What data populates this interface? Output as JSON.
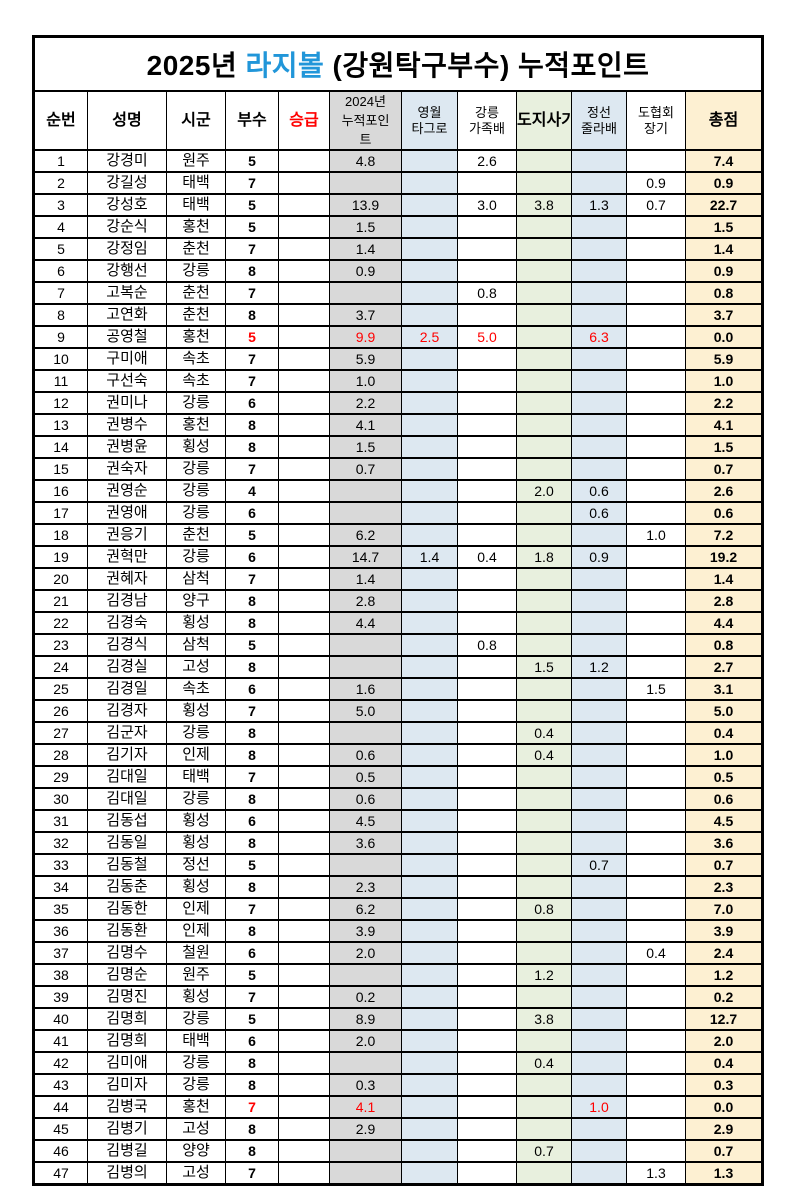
{
  "title": {
    "prefix": "2025년 ",
    "highlight": "라지볼",
    "suffix": " (강원탁구부수) 누적포인트"
  },
  "colors": {
    "title_highlight_blue": "#2196d9",
    "alert_red": "#ff0000",
    "col_2024_gray": "#d9d9d9",
    "col_event_blue": "#dde8f1",
    "col_event_green": "#e8f0de",
    "col_total_cream": "#fdf0d2"
  },
  "columns": [
    {
      "key": "no",
      "lines": [
        "순번"
      ],
      "bg": "",
      "red_label": false
    },
    {
      "key": "name",
      "lines": [
        "성명"
      ],
      "bg": "",
      "red_label": false
    },
    {
      "key": "city",
      "lines": [
        "시군"
      ],
      "bg": "",
      "red_label": false
    },
    {
      "key": "busu",
      "lines": [
        "부수"
      ],
      "bg": "",
      "red_label": false
    },
    {
      "key": "promo",
      "lines": [
        "승급"
      ],
      "bg": "",
      "red_label": true
    },
    {
      "key": "p2024",
      "lines": [
        "2024년",
        "누적포인",
        "트"
      ],
      "bg": "gray",
      "red_label": false
    },
    {
      "key": "yw",
      "lines": [
        "영월",
        "타그로"
      ],
      "bg": "blue",
      "red_label": false
    },
    {
      "key": "gn",
      "lines": [
        "강릉",
        "가족배"
      ],
      "bg": "",
      "red_label": false
    },
    {
      "key": "dj",
      "lines": [
        "도지사기"
      ],
      "bg": "green",
      "red_label": false
    },
    {
      "key": "js",
      "lines": [
        "정선",
        "줄라배"
      ],
      "bg": "blue",
      "red_label": false
    },
    {
      "key": "dh",
      "lines": [
        "도협회",
        "장기"
      ],
      "bg": "",
      "red_label": false
    },
    {
      "key": "total",
      "lines": [
        "총점"
      ],
      "bg": "cream",
      "red_label": false
    }
  ],
  "rows": [
    {
      "no": "1",
      "name": "강경미",
      "city": "원주",
      "busu": "5",
      "p2024": "4.8",
      "gn": "2.6",
      "total": "7.4"
    },
    {
      "no": "2",
      "name": "강길성",
      "city": "태백",
      "busu": "7",
      "dh": "0.9",
      "total": "0.9"
    },
    {
      "no": "3",
      "name": "강성호",
      "city": "태백",
      "busu": "5",
      "p2024": "13.9",
      "gn": "3.0",
      "dj": "3.8",
      "js": "1.3",
      "dh": "0.7",
      "total": "22.7"
    },
    {
      "no": "4",
      "name": "강순식",
      "city": "홍천",
      "busu": "5",
      "p2024": "1.5",
      "total": "1.5"
    },
    {
      "no": "5",
      "name": "강정임",
      "city": "춘천",
      "busu": "7",
      "p2024": "1.4",
      "total": "1.4"
    },
    {
      "no": "6",
      "name": "강행선",
      "city": "강릉",
      "busu": "8",
      "p2024": "0.9",
      "total": "0.9"
    },
    {
      "no": "7",
      "name": "고복순",
      "city": "춘천",
      "busu": "7",
      "gn": "0.8",
      "total": "0.8"
    },
    {
      "no": "8",
      "name": "고연화",
      "city": "춘천",
      "busu": "8",
      "p2024": "3.7",
      "total": "3.7"
    },
    {
      "no": "9",
      "name": "공영철",
      "city": "홍천",
      "busu": "5",
      "p2024": "9.9",
      "yw": "2.5",
      "gn": "5.0",
      "js": "6.3",
      "total": "0.0",
      "red": [
        "busu",
        "p2024",
        "yw",
        "gn",
        "js"
      ]
    },
    {
      "no": "10",
      "name": "구미애",
      "city": "속초",
      "busu": "7",
      "p2024": "5.9",
      "total": "5.9"
    },
    {
      "no": "11",
      "name": "구선숙",
      "city": "속초",
      "busu": "7",
      "p2024": "1.0",
      "total": "1.0"
    },
    {
      "no": "12",
      "name": "권미나",
      "city": "강릉",
      "busu": "6",
      "p2024": "2.2",
      "total": "2.2"
    },
    {
      "no": "13",
      "name": "권병수",
      "city": "홍천",
      "busu": "8",
      "p2024": "4.1",
      "total": "4.1"
    },
    {
      "no": "14",
      "name": "권병윤",
      "city": "횡성",
      "busu": "8",
      "p2024": "1.5",
      "total": "1.5"
    },
    {
      "no": "15",
      "name": "권숙자",
      "city": "강릉",
      "busu": "7",
      "p2024": "0.7",
      "total": "0.7"
    },
    {
      "no": "16",
      "name": "권영순",
      "city": "강릉",
      "busu": "4",
      "dj": "2.0",
      "js": "0.6",
      "total": "2.6"
    },
    {
      "no": "17",
      "name": "권영애",
      "city": "강릉",
      "busu": "6",
      "js": "0.6",
      "total": "0.6"
    },
    {
      "no": "18",
      "name": "권응기",
      "city": "춘천",
      "busu": "5",
      "p2024": "6.2",
      "dh": "1.0",
      "total": "7.2"
    },
    {
      "no": "19",
      "name": "권혁만",
      "city": "강릉",
      "busu": "6",
      "p2024": "14.7",
      "yw": "1.4",
      "gn": "0.4",
      "dj": "1.8",
      "js": "0.9",
      "total": "19.2"
    },
    {
      "no": "20",
      "name": "권혜자",
      "city": "삼척",
      "busu": "7",
      "p2024": "1.4",
      "total": "1.4"
    },
    {
      "no": "21",
      "name": "김경남",
      "city": "양구",
      "busu": "8",
      "p2024": "2.8",
      "total": "2.8"
    },
    {
      "no": "22",
      "name": "김경숙",
      "city": "횡성",
      "busu": "8",
      "p2024": "4.4",
      "total": "4.4"
    },
    {
      "no": "23",
      "name": "김경식",
      "city": "삼척",
      "busu": "5",
      "gn": "0.8",
      "total": "0.8"
    },
    {
      "no": "24",
      "name": "김경실",
      "city": "고성",
      "busu": "8",
      "dj": "1.5",
      "js": "1.2",
      "total": "2.7"
    },
    {
      "no": "25",
      "name": "김경일",
      "city": "속초",
      "busu": "6",
      "p2024": "1.6",
      "dh": "1.5",
      "total": "3.1"
    },
    {
      "no": "26",
      "name": "김경자",
      "city": "횡성",
      "busu": "7",
      "p2024": "5.0",
      "total": "5.0"
    },
    {
      "no": "27",
      "name": "김군자",
      "city": "강릉",
      "busu": "8",
      "dj": "0.4",
      "total": "0.4"
    },
    {
      "no": "28",
      "name": "김기자",
      "city": "인제",
      "busu": "8",
      "p2024": "0.6",
      "dj": "0.4",
      "total": "1.0"
    },
    {
      "no": "29",
      "name": "김대일",
      "city": "태백",
      "busu": "7",
      "p2024": "0.5",
      "total": "0.5"
    },
    {
      "no": "30",
      "name": "김대일",
      "city": "강릉",
      "busu": "8",
      "p2024": "0.6",
      "total": "0.6"
    },
    {
      "no": "31",
      "name": "김동섭",
      "city": "횡성",
      "busu": "6",
      "p2024": "4.5",
      "total": "4.5"
    },
    {
      "no": "32",
      "name": "김동일",
      "city": "횡성",
      "busu": "8",
      "p2024": "3.6",
      "total": "3.6"
    },
    {
      "no": "33",
      "name": "김동철",
      "city": "정선",
      "busu": "5",
      "js": "0.7",
      "total": "0.7"
    },
    {
      "no": "34",
      "name": "김동춘",
      "city": "횡성",
      "busu": "8",
      "p2024": "2.3",
      "total": "2.3"
    },
    {
      "no": "35",
      "name": "김동한",
      "city": "인제",
      "busu": "7",
      "p2024": "6.2",
      "dj": "0.8",
      "total": "7.0"
    },
    {
      "no": "36",
      "name": "김동환",
      "city": "인제",
      "busu": "8",
      "p2024": "3.9",
      "total": "3.9"
    },
    {
      "no": "37",
      "name": "김명수",
      "city": "철원",
      "busu": "6",
      "p2024": "2.0",
      "dh": "0.4",
      "total": "2.4"
    },
    {
      "no": "38",
      "name": "김명순",
      "city": "원주",
      "busu": "5",
      "dj": "1.2",
      "total": "1.2"
    },
    {
      "no": "39",
      "name": "김명진",
      "city": "횡성",
      "busu": "7",
      "p2024": "0.2",
      "total": "0.2"
    },
    {
      "no": "40",
      "name": "김명희",
      "city": "강릉",
      "busu": "5",
      "p2024": "8.9",
      "dj": "3.8",
      "total": "12.7"
    },
    {
      "no": "41",
      "name": "김명희",
      "city": "태백",
      "busu": "6",
      "p2024": "2.0",
      "total": "2.0"
    },
    {
      "no": "42",
      "name": "김미애",
      "city": "강릉",
      "busu": "8",
      "dj": "0.4",
      "total": "0.4"
    },
    {
      "no": "43",
      "name": "김미자",
      "city": "강릉",
      "busu": "8",
      "p2024": "0.3",
      "total": "0.3"
    },
    {
      "no": "44",
      "name": "김병국",
      "city": "홍천",
      "busu": "7",
      "p2024": "4.1",
      "js": "1.0",
      "total": "0.0",
      "red": [
        "busu",
        "p2024",
        "js"
      ]
    },
    {
      "no": "45",
      "name": "김병기",
      "city": "고성",
      "busu": "8",
      "p2024": "2.9",
      "total": "2.9"
    },
    {
      "no": "46",
      "name": "김병길",
      "city": "양양",
      "busu": "8",
      "dj": "0.7",
      "total": "0.7"
    },
    {
      "no": "47",
      "name": "김병의",
      "city": "고성",
      "busu": "7",
      "dh": "1.3",
      "total": "1.3"
    }
  ]
}
